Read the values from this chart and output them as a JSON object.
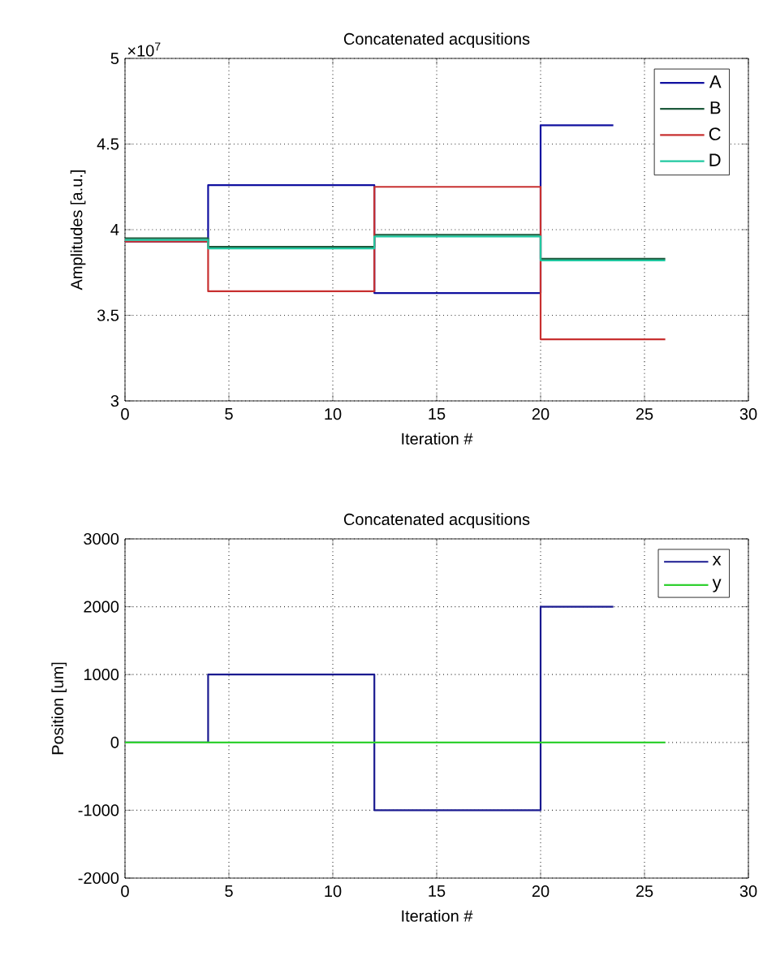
{
  "chart_data": [
    {
      "type": "line",
      "title": "Concatenated acqusitions",
      "xlabel": "Iteration #",
      "ylabel": "Amplitudes [a.u.]",
      "annotations": [
        "×10$^{7}$"
      ],
      "xlim": [
        0,
        30
      ],
      "ylim": [
        3,
        5
      ],
      "xticks": [
        0,
        5,
        10,
        15,
        20,
        25,
        30
      ],
      "yticks": [
        3,
        3.5,
        4,
        4.5,
        5
      ],
      "grid": true,
      "legend": "top right",
      "line_style": "solid",
      "marker": "none",
      "series": [
        {
          "name": "A",
          "color": "#1010a0",
          "x": [
            0,
            4,
            4,
            12,
            12,
            20,
            20,
            23.5
          ],
          "values": [
            3.93,
            3.93,
            4.26,
            4.26,
            3.63,
            3.63,
            4.61,
            4.61
          ]
        },
        {
          "name": "B",
          "color": "#1e5a3c",
          "x": [
            0,
            4,
            4,
            12,
            12,
            20,
            20,
            26
          ],
          "values": [
            3.95,
            3.95,
            3.9,
            3.9,
            3.97,
            3.97,
            3.83,
            3.83
          ]
        },
        {
          "name": "C",
          "color": "#c83030",
          "x": [
            0,
            4,
            4,
            12,
            12,
            20,
            20,
            26
          ],
          "values": [
            3.93,
            3.93,
            3.64,
            3.64,
            4.25,
            4.25,
            3.36,
            3.36
          ]
        },
        {
          "name": "D",
          "color": "#20c8a0",
          "x": [
            0,
            4,
            4,
            12,
            12,
            20,
            20,
            26
          ],
          "values": [
            3.94,
            3.94,
            3.89,
            3.89,
            3.96,
            3.96,
            3.82,
            3.82
          ]
        }
      ]
    },
    {
      "type": "line",
      "title": "Concatenated acqusitions",
      "xlabel": "Iteration #",
      "ylabel": "Position [um]",
      "xlim": [
        0,
        30
      ],
      "ylim": [
        -2000,
        3000
      ],
      "xticks": [
        0,
        5,
        10,
        15,
        20,
        25,
        30
      ],
      "yticks": [
        -2000,
        -1000,
        0,
        1000,
        2000,
        3000
      ],
      "grid": true,
      "legend": "top right",
      "line_style": "solid",
      "marker": "none",
      "series": [
        {
          "name": "x",
          "color": "#1a1a90",
          "x": [
            0,
            4,
            4,
            12,
            12,
            20,
            20,
            23.5
          ],
          "values": [
            0,
            0,
            1000,
            1000,
            -1000,
            -1000,
            2000,
            2000
          ]
        },
        {
          "name": "y",
          "color": "#30d030",
          "x": [
            0,
            26
          ],
          "values": [
            0,
            0
          ]
        }
      ]
    }
  ]
}
